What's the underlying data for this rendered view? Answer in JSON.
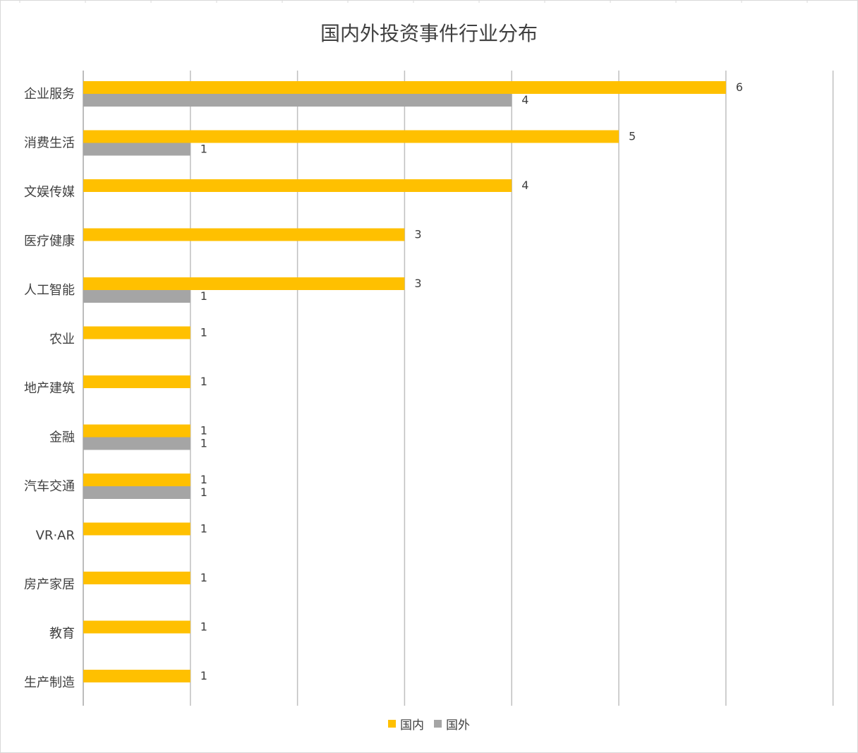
{
  "chart_data": {
    "type": "bar",
    "orientation": "horizontal",
    "title": "国内外投资事件行业分布",
    "categories": [
      "企业服务",
      "消费生活",
      "文娱传媒",
      "医疗健康",
      "人工智能",
      "农业",
      "地产建筑",
      "金融",
      "汽车交通",
      "VR·AR",
      "房产家居",
      "教育",
      "生产制造"
    ],
    "series": [
      {
        "name": "国内",
        "color": "#FFC000",
        "values": [
          6,
          5,
          4,
          3,
          3,
          1,
          1,
          1,
          1,
          1,
          1,
          1,
          1
        ]
      },
      {
        "name": "国外",
        "color": "#A5A5A5",
        "values": [
          4,
          1,
          null,
          null,
          1,
          null,
          null,
          1,
          1,
          null,
          null,
          null,
          null
        ]
      }
    ],
    "xlim": [
      0,
      7
    ],
    "grid": true,
    "legend_position": "bottom"
  }
}
